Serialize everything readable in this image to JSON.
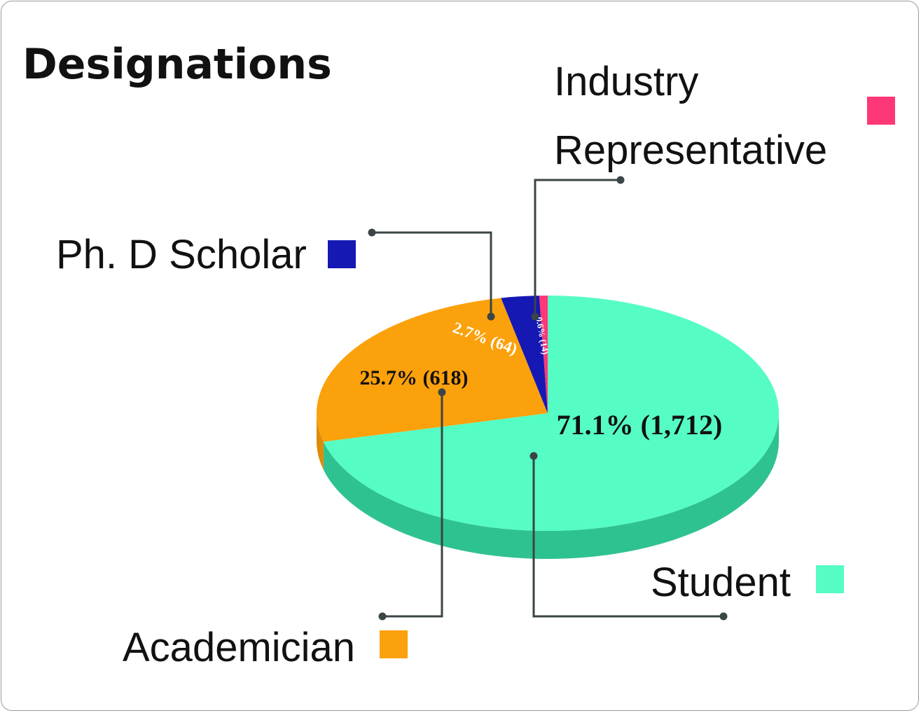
{
  "chart_data": {
    "type": "pie",
    "title": "Designations",
    "slices": [
      {
        "name": "Student",
        "value": 1712,
        "percent": 71.1,
        "label": "71.1% (1,712)",
        "color": "#55FDC5",
        "side_color": "#2FC291"
      },
      {
        "name": "Academician",
        "value": 618,
        "percent": 25.7,
        "label": "25.7% (618)",
        "color": "#FBA10B",
        "side_color": "#DD8A06"
      },
      {
        "name": "Ph. D Scholar",
        "value": 64,
        "percent": 2.7,
        "label": "2.7% (64)",
        "color": "#1518B3",
        "side_color": "#0E1080"
      },
      {
        "name": "Industry Representative",
        "value": 14,
        "percent": 0.6,
        "label": "0.6% (14)",
        "color": "#FE3777",
        "side_color": "#C92A5E"
      }
    ],
    "legend_lines": {
      "industry": [
        "Industry",
        "Representative"
      ]
    },
    "style": "3d",
    "legend_placement": "around"
  }
}
